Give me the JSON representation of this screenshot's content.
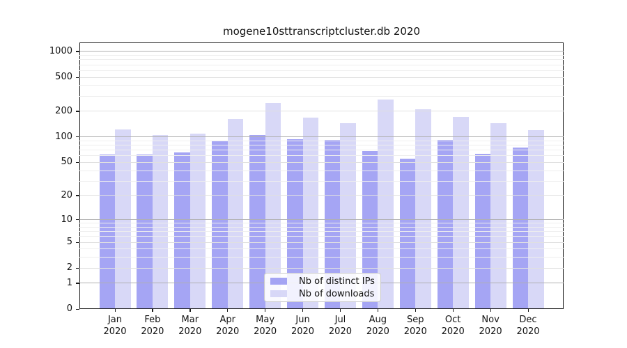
{
  "chart_data": {
    "type": "bar",
    "title": "mogene10sttranscriptcluster.db 2020",
    "categories": [
      "Jan 2020",
      "Feb 2020",
      "Mar 2020",
      "Apr 2020",
      "May 2020",
      "Jun 2020",
      "Jul 2020",
      "Aug 2020",
      "Sep 2020",
      "Oct 2020",
      "Nov 2020",
      "Dec 2020"
    ],
    "series": [
      {
        "name": "Nb of distinct IPs",
        "color": "#9191f2",
        "values": [
          62,
          62,
          66,
          90,
          105,
          94,
          93,
          68,
          55,
          92,
          63,
          75
        ]
      },
      {
        "name": "Nb of downloads",
        "color": "#d0d0f5",
        "values": [
          122,
          105,
          109,
          163,
          248,
          168,
          146,
          277,
          213,
          172,
          145,
          121
        ]
      }
    ],
    "yscale": "symlog",
    "yticks": [
      0,
      1,
      2,
      5,
      10,
      20,
      50,
      100,
      200,
      500,
      1000
    ],
    "ylim": [
      0,
      1274
    ],
    "xlabel": "",
    "ylabel": "",
    "grid": true,
    "legend_position": "lower-center",
    "colors": {
      "major_grid": "#b0b0b0",
      "labeled_minor_grid": "#e0e0e0",
      "minor_grid": "#eeeeee",
      "axis": "#1a1a1a"
    }
  }
}
